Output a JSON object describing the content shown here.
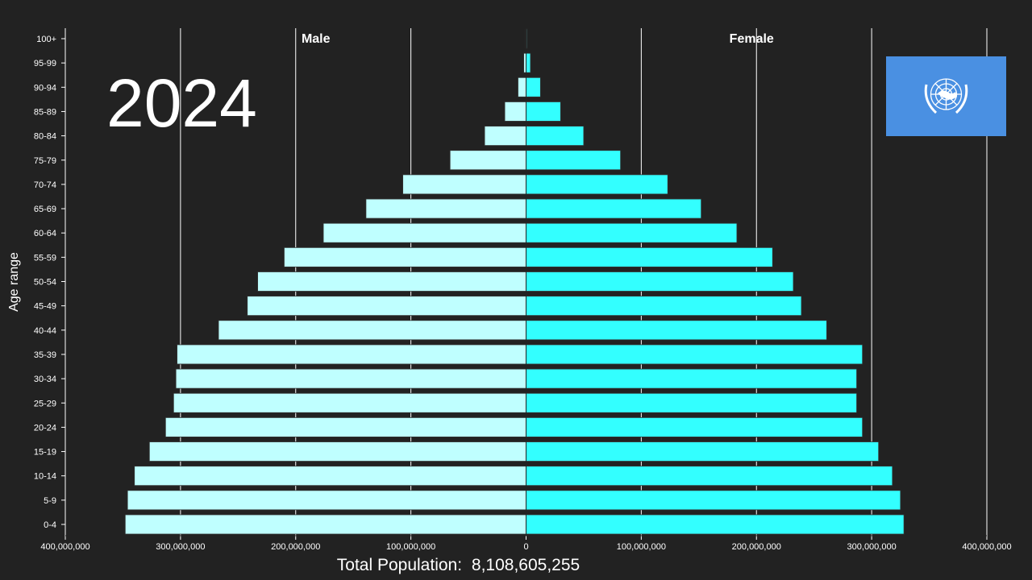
{
  "chart_data": {
    "type": "bar",
    "orientation": "horizontal",
    "subtype": "population-pyramid",
    "ylabel": "Age range",
    "categories": [
      "0-4",
      "5-9",
      "10-14",
      "15-19",
      "20-24",
      "25-29",
      "30-34",
      "35-39",
      "40-44",
      "45-49",
      "50-54",
      "55-59",
      "60-64",
      "65-69",
      "70-74",
      "75-79",
      "80-84",
      "85-89",
      "90-94",
      "95-99",
      "100+"
    ],
    "series": [
      {
        "name": "Male",
        "color": "#bfffff",
        "values": [
          348000000,
          346000000,
          340000000,
          327000000,
          313000000,
          306000000,
          304000000,
          303000000,
          267000000,
          242000000,
          233000000,
          210000000,
          176000000,
          139000000,
          107000000,
          66000000,
          36000000,
          18500000,
          7000000,
          2000000,
          300000
        ]
      },
      {
        "name": "Female",
        "color": "#33ffff",
        "values": [
          328000000,
          325000000,
          318000000,
          306000000,
          292000000,
          287000000,
          287000000,
          292000000,
          261000000,
          239000000,
          232000000,
          214000000,
          183000000,
          152000000,
          123000000,
          82000000,
          50000000,
          30000000,
          12500000,
          3800000,
          700000
        ]
      }
    ],
    "xlim": [
      -400000000,
      400000000
    ],
    "xticks": [
      -400000000,
      -300000000,
      -200000000,
      -100000000,
      0,
      100000000,
      200000000,
      300000000,
      400000000
    ],
    "xtick_labels": [
      "400,000,000",
      "300,000,000",
      "200,000,000",
      "100,000,000",
      "0",
      "100,000,000",
      "200,000,000",
      "300,000,000",
      "400,000,000"
    ],
    "grid": true,
    "background": "#222222"
  },
  "year": "2024",
  "total_label": "Total Population:",
  "total_value": "8,108,605,255",
  "flag": {
    "name": "united-nations-flag",
    "color": "#4a90e2"
  }
}
